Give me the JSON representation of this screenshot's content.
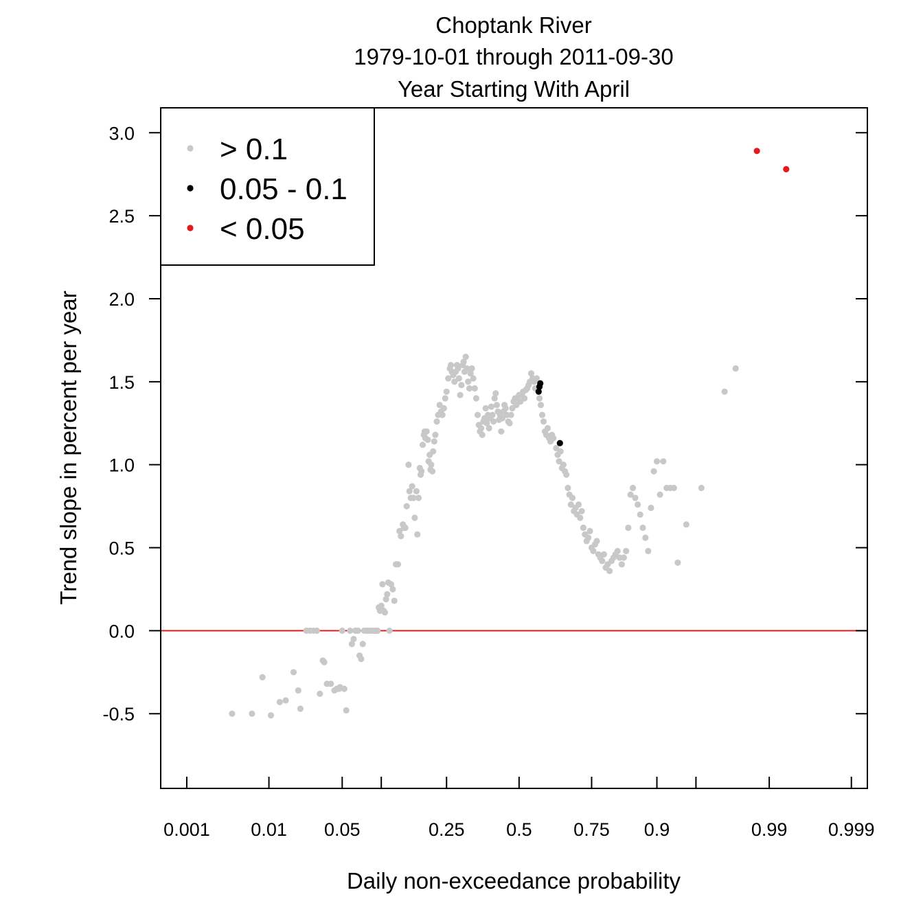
{
  "chart_data": {
    "type": "scatter",
    "title": [
      "Choptank River",
      "1979-10-01 through 2011-09-30",
      "Year Starting With April"
    ],
    "xlabel": "Daily non-exceedance probability",
    "ylabel": "Trend slope in percent per year",
    "x_scale": "probit",
    "xlim": [
      0.00043,
      0.9994
    ],
    "ylim": [
      -0.95,
      3.15
    ],
    "x_ticks": [
      0.001,
      0.01,
      0.05,
      0.25,
      0.5,
      0.75,
      0.9,
      0.99,
      0.999
    ],
    "x_tick_labels": [
      "0.001",
      "0.01",
      "0.05",
      "0.25",
      "0.5",
      "0.75",
      "0.9",
      "0.99",
      "0.999"
    ],
    "x_minor_ticks": [
      0.1,
      0.95
    ],
    "y_ticks": [
      -0.5,
      0.0,
      0.5,
      1.0,
      1.5,
      2.0,
      2.5,
      3.0
    ],
    "y_tick_labels": [
      "-0.5",
      "0.0",
      "0.5",
      "1.0",
      "1.5",
      "2.0",
      "2.5",
      "3.0"
    ],
    "reference_line": {
      "y": 0.0,
      "color": "#e41a1c"
    },
    "legend": {
      "placement": "top-left",
      "entries": [
        {
          "label": "> 0.1",
          "color": "#c8c8c8"
        },
        {
          "label": "0.05 - 0.1",
          "color": "#000000"
        },
        {
          "label": "< 0.05",
          "color": "#e41a1c"
        }
      ]
    },
    "series": [
      {
        "name": "> 0.1",
        "color": "#c8c8c8",
        "points": [
          [
            0.0038,
            -0.5
          ],
          [
            0.0065,
            -0.5
          ],
          [
            0.0085,
            -0.28
          ],
          [
            0.0105,
            -0.51
          ],
          [
            0.013,
            -0.43
          ],
          [
            0.015,
            -0.42
          ],
          [
            0.018,
            -0.25
          ],
          [
            0.02,
            -0.36
          ],
          [
            0.021,
            -0.47
          ],
          [
            0.024,
            0.0
          ],
          [
            0.026,
            0.0
          ],
          [
            0.028,
            0.0
          ],
          [
            0.03,
            0.0
          ],
          [
            0.032,
            -0.38
          ],
          [
            0.034,
            -0.18
          ],
          [
            0.035,
            -0.19
          ],
          [
            0.037,
            -0.32
          ],
          [
            0.04,
            -0.32
          ],
          [
            0.043,
            -0.36
          ],
          [
            0.045,
            -0.35
          ],
          [
            0.047,
            -0.35
          ],
          [
            0.048,
            -0.34
          ],
          [
            0.05,
            0.0
          ],
          [
            0.052,
            -0.35
          ],
          [
            0.054,
            -0.48
          ],
          [
            0.058,
            0.0
          ],
          [
            0.06,
            -0.08
          ],
          [
            0.062,
            -0.05
          ],
          [
            0.064,
            0.0
          ],
          [
            0.067,
            0.0
          ],
          [
            0.069,
            -0.15
          ],
          [
            0.071,
            -0.17
          ],
          [
            0.073,
            -0.08
          ],
          [
            0.075,
            0.0
          ],
          [
            0.078,
            0.0
          ],
          [
            0.08,
            0.0
          ],
          [
            0.082,
            0.0
          ],
          [
            0.085,
            0.0
          ],
          [
            0.088,
            0.0
          ],
          [
            0.09,
            0.0
          ],
          [
            0.092,
            0.0
          ],
          [
            0.094,
            0.0
          ],
          [
            0.096,
            0.14
          ],
          [
            0.098,
            0.12
          ],
          [
            0.1,
            0.15
          ],
          [
            0.102,
            0.28
          ],
          [
            0.104,
            0.12
          ],
          [
            0.106,
            0.11
          ],
          [
            0.108,
            0.19
          ],
          [
            0.11,
            0.22
          ],
          [
            0.112,
            0.29
          ],
          [
            0.114,
            0.0
          ],
          [
            0.117,
            0.28
          ],
          [
            0.12,
            0.25
          ],
          [
            0.123,
            0.18
          ],
          [
            0.126,
            0.4
          ],
          [
            0.13,
            0.4
          ],
          [
            0.133,
            0.6
          ],
          [
            0.136,
            0.57
          ],
          [
            0.14,
            0.64
          ],
          [
            0.142,
            0.62
          ],
          [
            0.145,
            0.62
          ],
          [
            0.148,
            0.75
          ],
          [
            0.152,
            1.0
          ],
          [
            0.154,
            0.84
          ],
          [
            0.157,
            0.8
          ],
          [
            0.16,
            0.87
          ],
          [
            0.163,
            0.8
          ],
          [
            0.166,
            0.68
          ],
          [
            0.17,
            0.84
          ],
          [
            0.172,
            0.58
          ],
          [
            0.175,
            0.8
          ],
          [
            0.178,
            0.98
          ],
          [
            0.18,
            0.94
          ],
          [
            0.182,
            0.96
          ],
          [
            0.185,
            1.12
          ],
          [
            0.188,
            1.18
          ],
          [
            0.19,
            1.2
          ],
          [
            0.192,
            1.16
          ],
          [
            0.195,
            1.2
          ],
          [
            0.198,
            1.15
          ],
          [
            0.2,
            1.02
          ],
          [
            0.203,
            1.06
          ],
          [
            0.205,
            0.97
          ],
          [
            0.207,
            1.0
          ],
          [
            0.21,
            0.96
          ],
          [
            0.212,
            1.08
          ],
          [
            0.215,
            1.14
          ],
          [
            0.218,
            1.18
          ],
          [
            0.222,
            1.26
          ],
          [
            0.226,
            1.3
          ],
          [
            0.23,
            1.36
          ],
          [
            0.234,
            1.32
          ],
          [
            0.238,
            1.3
          ],
          [
            0.242,
            1.34
          ],
          [
            0.246,
            1.4
          ],
          [
            0.25,
            1.44
          ],
          [
            0.255,
            1.52
          ],
          [
            0.26,
            1.58
          ],
          [
            0.263,
            1.6
          ],
          [
            0.266,
            1.56
          ],
          [
            0.27,
            1.54
          ],
          [
            0.274,
            1.5
          ],
          [
            0.278,
            1.56
          ],
          [
            0.282,
            1.6
          ],
          [
            0.285,
            1.58
          ],
          [
            0.288,
            1.52
          ],
          [
            0.292,
            1.42
          ],
          [
            0.296,
            1.48
          ],
          [
            0.3,
            1.6
          ],
          [
            0.303,
            1.62
          ],
          [
            0.306,
            1.56
          ],
          [
            0.31,
            1.65
          ],
          [
            0.314,
            1.58
          ],
          [
            0.318,
            1.5
          ],
          [
            0.322,
            1.46
          ],
          [
            0.326,
            1.55
          ],
          [
            0.33,
            1.58
          ],
          [
            0.335,
            1.52
          ],
          [
            0.34,
            1.46
          ],
          [
            0.345,
            1.4
          ],
          [
            0.35,
            1.3
          ],
          [
            0.354,
            1.24
          ],
          [
            0.358,
            1.2
          ],
          [
            0.362,
            1.22
          ],
          [
            0.366,
            1.18
          ],
          [
            0.37,
            1.26
          ],
          [
            0.374,
            1.28
          ],
          [
            0.378,
            1.34
          ],
          [
            0.382,
            1.25
          ],
          [
            0.386,
            1.3
          ],
          [
            0.39,
            1.22
          ],
          [
            0.394,
            1.28
          ],
          [
            0.398,
            1.35
          ],
          [
            0.402,
            1.3
          ],
          [
            0.406,
            1.26
          ],
          [
            0.41,
            1.4
          ],
          [
            0.414,
            1.43
          ],
          [
            0.418,
            1.36
          ],
          [
            0.422,
            1.32
          ],
          [
            0.426,
            1.27
          ],
          [
            0.43,
            1.3
          ],
          [
            0.434,
            1.2
          ],
          [
            0.438,
            1.28
          ],
          [
            0.442,
            1.32
          ],
          [
            0.446,
            1.36
          ],
          [
            0.45,
            1.34
          ],
          [
            0.455,
            1.3
          ],
          [
            0.46,
            1.26
          ],
          [
            0.465,
            1.25
          ],
          [
            0.47,
            1.3
          ],
          [
            0.475,
            1.34
          ],
          [
            0.48,
            1.38
          ],
          [
            0.485,
            1.4
          ],
          [
            0.49,
            1.36
          ],
          [
            0.495,
            1.4
          ],
          [
            0.5,
            1.42
          ],
          [
            0.505,
            1.38
          ],
          [
            0.51,
            1.42
          ],
          [
            0.515,
            1.44
          ],
          [
            0.52,
            1.4
          ],
          [
            0.525,
            1.45
          ],
          [
            0.53,
            1.46
          ],
          [
            0.535,
            1.48
          ],
          [
            0.54,
            1.5
          ],
          [
            0.545,
            1.55
          ],
          [
            0.55,
            1.52
          ],
          [
            0.555,
            1.5
          ],
          [
            0.56,
            1.46
          ],
          [
            0.565,
            1.52
          ],
          [
            0.575,
            1.4
          ],
          [
            0.58,
            1.36
          ],
          [
            0.585,
            1.3
          ],
          [
            0.59,
            1.26
          ],
          [
            0.595,
            1.2
          ],
          [
            0.6,
            1.18
          ],
          [
            0.605,
            1.22
          ],
          [
            0.61,
            1.16
          ],
          [
            0.615,
            1.14
          ],
          [
            0.62,
            1.18
          ],
          [
            0.625,
            1.16
          ],
          [
            0.635,
            1.1
          ],
          [
            0.64,
            1.06
          ],
          [
            0.645,
            1.02
          ],
          [
            0.65,
            1.08
          ],
          [
            0.655,
            0.98
          ],
          [
            0.66,
            1.0
          ],
          [
            0.665,
            0.96
          ],
          [
            0.67,
            0.94
          ],
          [
            0.675,
            0.86
          ],
          [
            0.68,
            0.82
          ],
          [
            0.685,
            0.76
          ],
          [
            0.69,
            0.8
          ],
          [
            0.695,
            0.72
          ],
          [
            0.7,
            0.74
          ],
          [
            0.705,
            0.7
          ],
          [
            0.71,
            0.76
          ],
          [
            0.715,
            0.68
          ],
          [
            0.72,
            0.72
          ],
          [
            0.725,
            0.62
          ],
          [
            0.73,
            0.58
          ],
          [
            0.735,
            0.54
          ],
          [
            0.74,
            0.56
          ],
          [
            0.745,
            0.6
          ],
          [
            0.75,
            0.5
          ],
          [
            0.755,
            0.48
          ],
          [
            0.76,
            0.52
          ],
          [
            0.765,
            0.54
          ],
          [
            0.77,
            0.46
          ],
          [
            0.775,
            0.44
          ],
          [
            0.78,
            0.42
          ],
          [
            0.785,
            0.46
          ],
          [
            0.79,
            0.38
          ],
          [
            0.795,
            0.4
          ],
          [
            0.8,
            0.36
          ],
          [
            0.805,
            0.42
          ],
          [
            0.81,
            0.44
          ],
          [
            0.815,
            0.46
          ],
          [
            0.82,
            0.48
          ],
          [
            0.825,
            0.44
          ],
          [
            0.83,
            0.4
          ],
          [
            0.835,
            0.44
          ],
          [
            0.84,
            0.48
          ],
          [
            0.845,
            0.62
          ],
          [
            0.85,
            0.82
          ],
          [
            0.855,
            0.86
          ],
          [
            0.86,
            0.8
          ],
          [
            0.865,
            0.76
          ],
          [
            0.87,
            0.7
          ],
          [
            0.875,
            0.62
          ],
          [
            0.88,
            0.56
          ],
          [
            0.885,
            0.48
          ],
          [
            0.89,
            0.74
          ],
          [
            0.895,
            0.96
          ],
          [
            0.9,
            1.02
          ],
          [
            0.905,
            0.82
          ],
          [
            0.91,
            1.02
          ],
          [
            0.915,
            0.86
          ],
          [
            0.92,
            0.86
          ],
          [
            0.925,
            0.86
          ],
          [
            0.93,
            0.41
          ],
          [
            0.94,
            0.64
          ],
          [
            0.955,
            0.86
          ],
          [
            0.972,
            1.44
          ],
          [
            0.978,
            1.58
          ]
        ]
      },
      {
        "name": "0.05 - 0.1",
        "color": "#000000",
        "points": [
          [
            0.572,
            1.44
          ],
          [
            0.575,
            1.47
          ],
          [
            0.578,
            1.49
          ],
          [
            0.648,
            1.13
          ]
        ]
      },
      {
        "name": "< 0.05",
        "color": "#e41a1c",
        "points": [
          [
            0.9865,
            2.89
          ],
          [
            0.9935,
            2.78
          ]
        ]
      }
    ]
  }
}
